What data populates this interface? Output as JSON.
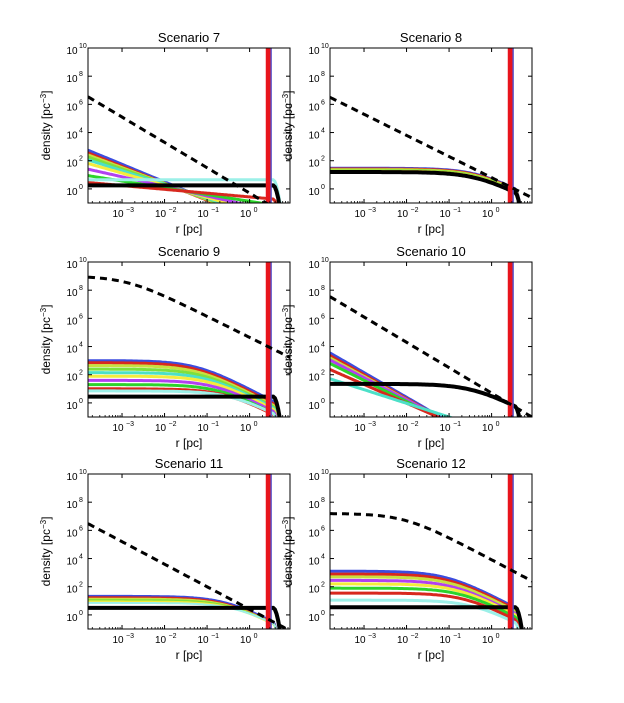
{
  "figure": {
    "xlabel": "r [pc]",
    "ylabel": "density [pc^-3]",
    "ylabel_main": "density [pc",
    "ylabel_exp": "−3",
    "ylabel_close": "]",
    "x_log_range": [
      -3.8,
      0.95
    ],
    "y_log_range": [
      -1.0,
      10.0
    ],
    "x_tick_exponents": [
      "-3",
      "-2",
      "-1",
      "0"
    ],
    "y_tick_exponents": [
      "0",
      "2",
      "4",
      "6",
      "8",
      "10"
    ],
    "tick_base": "10",
    "red_band_log_r": [
      0.38,
      0.52
    ],
    "colors": {
      "red_band": "#e8141c",
      "blue_band": "#3c5ae8",
      "cusp_palette": [
        "#3b4cdf",
        "#d8281e",
        "#c8e040",
        "#7ee03c",
        "#4ce0c8",
        "#f4ec3c",
        "#b240f0",
        "#f06c28",
        "#2cd42c",
        "#9cf0e8"
      ],
      "black": "#000000"
    }
  },
  "chart_data": [
    {
      "type": "line",
      "title": "Scenario 7",
      "xlabel": "r [pc]",
      "ylabel": "density [pc^-3]",
      "xscale": "log",
      "yscale": "log",
      "reference_dashed": {
        "log_rho0": 10.5,
        "log_rc": -6,
        "slope": 1.8
      },
      "series": [
        {
          "log_rho0": 5.5,
          "log_rc": -6,
          "slope": 1.25,
          "width": 3,
          "color": "#3b4cdf"
        },
        {
          "log_rho0": 5.2,
          "log_rc": -6,
          "slope": 1.2,
          "width": 3,
          "color": "#d8281e"
        },
        {
          "log_rho0": 4.9,
          "log_rc": -6,
          "slope": 1.13,
          "width": 3,
          "color": "#c8e040"
        },
        {
          "log_rho0": 4.6,
          "log_rc": -6,
          "slope": 1.06,
          "width": 3,
          "color": "#7ee03c"
        },
        {
          "log_rho0": 4.2,
          "log_rc": -6,
          "slope": 0.97,
          "width": 3,
          "color": "#4ce0c8"
        },
        {
          "log_rho0": 3.7,
          "log_rc": -6,
          "slope": 0.86,
          "width": 3,
          "color": "#f4ec3c"
        },
        {
          "log_rho0": 2.9,
          "log_rc": -6,
          "slope": 0.68,
          "width": 3,
          "color": "#b240f0"
        },
        {
          "log_rho0": 2.0,
          "log_rc": -6,
          "slope": 0.48,
          "width": 3,
          "color": "#2cd42c"
        },
        {
          "log_rho0": 1.05,
          "log_rc": -6,
          "slope": 0.27,
          "width": 3,
          "color": "#d8281e"
        },
        {
          "log_rho0": 0.65,
          "log_rc": 0,
          "slope": 0,
          "width": 3,
          "color": "#9cf0e8"
        },
        {
          "log_rho0": 0.25,
          "log_rc": 0.1,
          "slope": 0,
          "width": 4,
          "color": "#000000"
        }
      ]
    },
    {
      "type": "line",
      "title": "Scenario 8",
      "xlabel": "r [pc]",
      "ylabel": "density [pc^-3]",
      "xscale": "log",
      "yscale": "log",
      "reference_dashed": {
        "log_rho0": 9.8,
        "log_rc": -6,
        "slope": 1.5
      },
      "series": [
        {
          "log_rho0": 1.5,
          "log_rc": -0.3,
          "slope": 1.6,
          "width": 2,
          "color": "#3b4cdf"
        },
        {
          "log_rho0": 1.45,
          "log_rc": -0.3,
          "slope": 1.6,
          "width": 2,
          "color": "#d8281e"
        },
        {
          "log_rho0": 1.4,
          "log_rc": -0.3,
          "slope": 1.6,
          "width": 2,
          "color": "#c8e040"
        },
        {
          "log_rho0": 1.35,
          "log_rc": -0.3,
          "slope": 1.6,
          "width": 2,
          "color": "#7ee03c"
        },
        {
          "log_rho0": 1.3,
          "log_rc": -0.3,
          "slope": 1.6,
          "width": 2,
          "color": "#f4ec3c"
        },
        {
          "log_rho0": 1.2,
          "log_rc": -0.3,
          "slope": 1.6,
          "width": 4,
          "color": "#000000"
        }
      ]
    },
    {
      "type": "line",
      "title": "Scenario 9",
      "xlabel": "r [pc]",
      "ylabel": "density [pc^-3]",
      "xscale": "log",
      "yscale": "log",
      "reference_dashed": {
        "log_rho0": 9.0,
        "log_rc": -2.9,
        "slope": 1.5
      },
      "series": [
        {
          "log_rho0": 3.0,
          "log_rc": -1.25,
          "slope": 1.6,
          "width": 3,
          "color": "#3b4cdf"
        },
        {
          "log_rho0": 2.85,
          "log_rc": -1.25,
          "slope": 1.6,
          "width": 3,
          "color": "#d8281e"
        },
        {
          "log_rho0": 2.65,
          "log_rc": -1.2,
          "slope": 1.6,
          "width": 3,
          "color": "#c8e040"
        },
        {
          "log_rho0": 2.4,
          "log_rc": -1.1,
          "slope": 1.6,
          "width": 3,
          "color": "#7ee03c"
        },
        {
          "log_rho0": 2.15,
          "log_rc": -1.0,
          "slope": 1.6,
          "width": 3,
          "color": "#4ce0c8"
        },
        {
          "log_rho0": 1.9,
          "log_rc": -0.9,
          "slope": 1.6,
          "width": 3,
          "color": "#f4ec3c"
        },
        {
          "log_rho0": 1.6,
          "log_rc": -0.8,
          "slope": 1.6,
          "width": 3,
          "color": "#b240f0"
        },
        {
          "log_rho0": 1.3,
          "log_rc": -0.7,
          "slope": 1.6,
          "width": 3,
          "color": "#2cd42c"
        },
        {
          "log_rho0": 1.0,
          "log_rc": -0.55,
          "slope": 1.6,
          "width": 3,
          "color": "#d8281e"
        },
        {
          "log_rho0": 0.85,
          "log_rc": -0.4,
          "slope": 1.6,
          "width": 3,
          "color": "#9cf0e8"
        },
        {
          "log_rho0": 0.45,
          "log_rc": 0.1,
          "slope": 0,
          "width": 4,
          "color": "#000000"
        }
      ]
    },
    {
      "type": "line",
      "title": "Scenario 10",
      "xlabel": "r [pc]",
      "ylabel": "density [pc^-3]",
      "xscale": "log",
      "yscale": "log",
      "reference_dashed": {
        "log_rho0": 11.5,
        "log_rc": -6,
        "slope": 1.8
      },
      "series": [
        {
          "log_rho0": 7.4,
          "log_rc": -6,
          "slope": 1.75,
          "width": 3,
          "color": "#3b4cdf"
        },
        {
          "log_rho0": 7.1,
          "log_rc": -6,
          "slope": 1.7,
          "width": 3,
          "color": "#d8281e"
        },
        {
          "log_rho0": 6.8,
          "log_rc": -6,
          "slope": 1.64,
          "width": 3,
          "color": "#c8e040"
        },
        {
          "log_rho0": 6.5,
          "log_rc": -6,
          "slope": 1.57,
          "width": 3,
          "color": "#b240f0"
        },
        {
          "log_rho0": 6.1,
          "log_rc": -6,
          "slope": 1.5,
          "width": 3,
          "color": "#2cd42c"
        },
        {
          "log_rho0": 5.3,
          "log_rc": -6,
          "slope": 1.33,
          "width": 3,
          "color": "#d8281e"
        },
        {
          "log_rho0": 3.85,
          "log_rc": -6,
          "slope": 0.97,
          "width": 3,
          "color": "#4ce0c8"
        },
        {
          "log_rho0": 1.35,
          "log_rc": -0.4,
          "slope": 1.6,
          "width": 4,
          "color": "#000000"
        }
      ]
    },
    {
      "type": "line",
      "title": "Scenario 11",
      "xlabel": "r [pc]",
      "ylabel": "density [pc^-3]",
      "xscale": "log",
      "yscale": "log",
      "reference_dashed": {
        "log_rho0": 10.0,
        "log_rc": -6,
        "slope": 1.6
      },
      "series": [
        {
          "log_rho0": 1.35,
          "log_rc": -0.55,
          "slope": 1.6,
          "width": 2,
          "color": "#3b4cdf"
        },
        {
          "log_rho0": 1.25,
          "log_rc": -0.55,
          "slope": 1.6,
          "width": 2,
          "color": "#d8281e"
        },
        {
          "log_rho0": 1.15,
          "log_rc": -0.5,
          "slope": 1.6,
          "width": 2,
          "color": "#c8e040"
        },
        {
          "log_rho0": 1.05,
          "log_rc": -0.45,
          "slope": 1.6,
          "width": 2,
          "color": "#7ee03c"
        },
        {
          "log_rho0": 0.95,
          "log_rc": -0.4,
          "slope": 1.6,
          "width": 2,
          "color": "#f4ec3c"
        },
        {
          "log_rho0": 0.85,
          "log_rc": -0.3,
          "slope": 1.6,
          "width": 2,
          "color": "#9cf0e8"
        },
        {
          "log_rho0": 0.5,
          "log_rc": 0.1,
          "slope": 0,
          "width": 4,
          "color": "#000000"
        }
      ]
    },
    {
      "type": "line",
      "title": "Scenario 12",
      "xlabel": "r [pc]",
      "ylabel": "density [pc^-3]",
      "xscale": "log",
      "yscale": "log",
      "reference_dashed": {
        "log_rho0": 7.2,
        "log_rc": -2.05,
        "slope": 1.6
      },
      "series": [
        {
          "log_rho0": 3.1,
          "log_rc": -1.05,
          "slope": 1.6,
          "width": 3,
          "color": "#3b4cdf"
        },
        {
          "log_rho0": 2.9,
          "log_rc": -1.0,
          "slope": 1.6,
          "width": 3,
          "color": "#d8281e"
        },
        {
          "log_rho0": 2.7,
          "log_rc": -0.95,
          "slope": 1.6,
          "width": 3,
          "color": "#c8e040"
        },
        {
          "log_rho0": 2.45,
          "log_rc": -0.9,
          "slope": 1.6,
          "width": 3,
          "color": "#b240f0"
        },
        {
          "log_rho0": 2.2,
          "log_rc": -0.8,
          "slope": 1.6,
          "width": 3,
          "color": "#f4ec3c"
        },
        {
          "log_rho0": 1.9,
          "log_rc": -0.7,
          "slope": 1.6,
          "width": 3,
          "color": "#2cd42c"
        },
        {
          "log_rho0": 1.55,
          "log_rc": -0.6,
          "slope": 1.6,
          "width": 3,
          "color": "#d8281e"
        },
        {
          "log_rho0": 1.05,
          "log_rc": -0.4,
          "slope": 1.6,
          "width": 3,
          "color": "#9cf0e8"
        },
        {
          "log_rho0": 0.55,
          "log_rc": 0.1,
          "slope": 0,
          "width": 4,
          "color": "#000000"
        }
      ]
    }
  ]
}
